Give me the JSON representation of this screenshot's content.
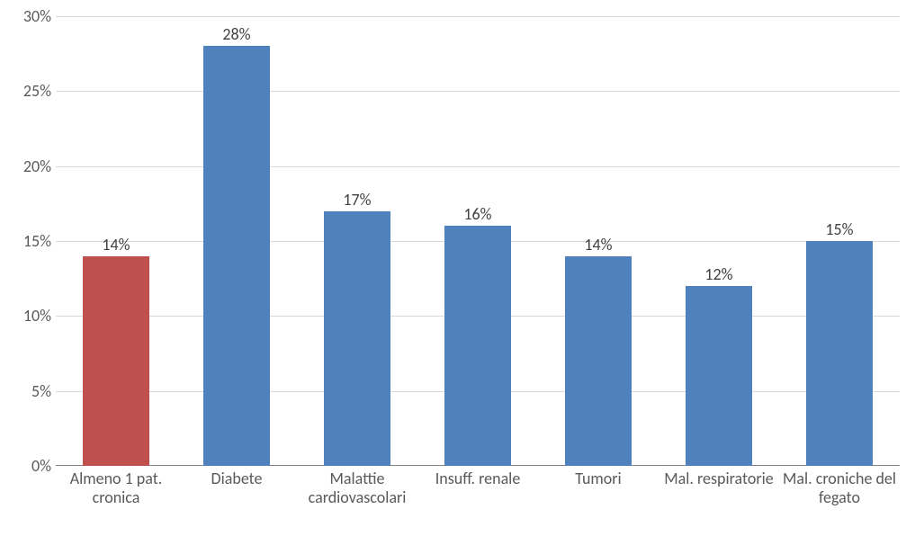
{
  "chart": {
    "type": "bar",
    "ylim": [
      0,
      30
    ],
    "ytick_step": 5,
    "y_tick_suffix": "%",
    "background_color": "#ffffff",
    "grid_color": "#d9d9d9",
    "axis_line_color": "#808080",
    "tick_label_color": "#595959",
    "tick_label_fontsize": 18,
    "data_label_fontsize": 18,
    "data_label_suffix": "%",
    "bar_width_ratio": 0.55,
    "colors": {
      "primary": "#4f81bd",
      "highlight": "#c0504d"
    },
    "categories": [
      {
        "label": "Almeno 1 pat. cronica",
        "value": 14,
        "color": "#c0504d"
      },
      {
        "label": "Diabete",
        "value": 28,
        "color": "#4f81bd"
      },
      {
        "label": "Malattie cardiovascolari",
        "value": 17,
        "color": "#4f81bd"
      },
      {
        "label": "Insuff. renale",
        "value": 16,
        "color": "#4f81bd"
      },
      {
        "label": "Tumori",
        "value": 14,
        "color": "#4f81bd"
      },
      {
        "label": "Mal. respiratorie",
        "value": 12,
        "color": "#4f81bd"
      },
      {
        "label": "Mal. croniche del fegato",
        "value": 15,
        "color": "#4f81bd"
      }
    ],
    "y_ticks": [
      0,
      5,
      10,
      15,
      20,
      25,
      30
    ]
  }
}
